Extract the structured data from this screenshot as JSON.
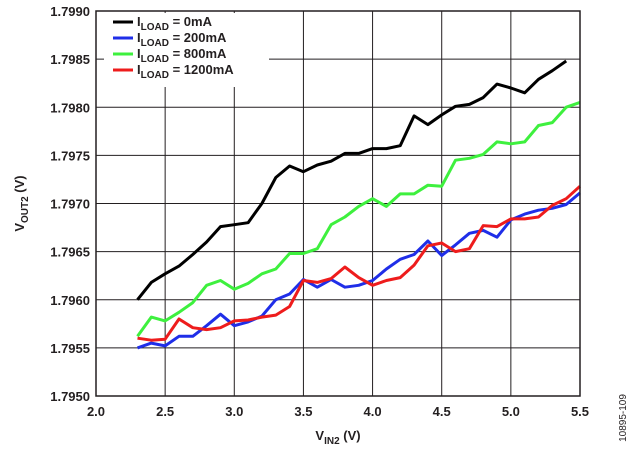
{
  "chart_data": {
    "type": "line",
    "xlabel": {
      "main": "V",
      "sub": "IN2",
      "unit": " (V)"
    },
    "ylabel": {
      "main": "V",
      "sub": "OUT2",
      "unit": " (V)"
    },
    "xlim": [
      2.0,
      5.5
    ],
    "ylim": [
      1.795,
      1.799
    ],
    "xticks": [
      2.0,
      2.5,
      3.0,
      3.5,
      4.0,
      4.5,
      5.0,
      5.5
    ],
    "xtick_labels": [
      "2.0",
      "2.5",
      "3.0",
      "3.5",
      "4.0",
      "4.5",
      "5.0",
      "5.5"
    ],
    "yticks": [
      1.795,
      1.7955,
      1.796,
      1.7965,
      1.797,
      1.7975,
      1.798,
      1.7985,
      1.799
    ],
    "ytick_labels": [
      "1.7950",
      "1.7955",
      "1.7960",
      "1.7965",
      "1.7970",
      "1.7975",
      "1.7980",
      "1.7985",
      "1.7990"
    ],
    "grid": true,
    "legend_position": "top-left",
    "x": [
      2.3,
      2.4,
      2.5,
      2.6,
      2.7,
      2.8,
      2.9,
      3.0,
      3.1,
      3.2,
      3.3,
      3.4,
      3.5,
      3.6,
      3.7,
      3.8,
      3.9,
      4.0,
      4.1,
      4.2,
      4.3,
      4.4,
      4.5,
      4.6,
      4.7,
      4.8,
      4.9,
      5.0,
      5.1,
      5.2,
      5.3,
      5.4,
      5.5
    ],
    "series": [
      {
        "name": {
          "main": "I",
          "sub": "LOAD",
          "rest": " = 0mA"
        },
        "color": "#000000",
        "values": [
          1.796,
          1.79618,
          1.79627,
          1.79635,
          1.79647,
          1.7966,
          1.79676,
          1.79678,
          1.7968,
          1.797,
          1.79727,
          1.79739,
          1.79733,
          1.7974,
          1.79744,
          1.79752,
          1.79752,
          1.79757,
          1.79757,
          1.7976,
          1.79791,
          1.79782,
          1.79792,
          1.79801,
          1.79803,
          1.7981,
          1.79824,
          1.7982,
          1.79815,
          1.79829,
          1.79838,
          1.79848,
          null
        ]
      },
      {
        "name": {
          "main": "I",
          "sub": "LOAD",
          "rest": " = 200mA"
        },
        "color": "#1f2ee8",
        "values": [
          1.7955,
          1.79555,
          1.79552,
          1.79562,
          1.79562,
          1.79573,
          1.79585,
          1.79573,
          1.79577,
          1.79583,
          1.796,
          1.79606,
          1.79621,
          1.79613,
          1.79621,
          1.79613,
          1.79615,
          1.7962,
          1.79632,
          1.79642,
          1.79647,
          1.79661,
          1.79646,
          1.79657,
          1.79669,
          1.79672,
          1.79665,
          1.79683,
          1.79689,
          1.79693,
          1.79695,
          1.79699,
          1.79711
        ]
      },
      {
        "name": {
          "main": "I",
          "sub": "LOAD",
          "rest": " = 800mA"
        },
        "color": "#3ef03e",
        "values": [
          1.79562,
          1.79582,
          1.79578,
          1.79587,
          1.79597,
          1.79615,
          1.7962,
          1.79611,
          1.79617,
          1.79627,
          1.79632,
          1.79648,
          1.79648,
          1.79653,
          1.79678,
          1.79686,
          1.79697,
          1.79705,
          1.79697,
          1.7971,
          1.7971,
          1.79719,
          1.79718,
          1.79745,
          1.79747,
          1.79751,
          1.79764,
          1.79762,
          1.79764,
          1.79781,
          1.79784,
          1.798,
          1.79805
        ]
      },
      {
        "name": {
          "main": "I",
          "sub": "LOAD",
          "rest": " = 1200mA"
        },
        "color": "#ee1c1c",
        "values": [
          1.7956,
          1.79558,
          1.79559,
          1.7958,
          1.79571,
          1.79569,
          1.79571,
          1.79578,
          1.79579,
          1.79582,
          1.79584,
          1.79593,
          1.7962,
          1.79618,
          1.79622,
          1.79634,
          1.79623,
          1.79615,
          1.7962,
          1.79623,
          1.79636,
          1.79656,
          1.79659,
          1.7965,
          1.79653,
          1.79677,
          1.79676,
          1.79684,
          1.79684,
          1.79686,
          1.79698,
          1.79705,
          1.79718
        ]
      }
    ]
  },
  "figure_id": "10895-109"
}
